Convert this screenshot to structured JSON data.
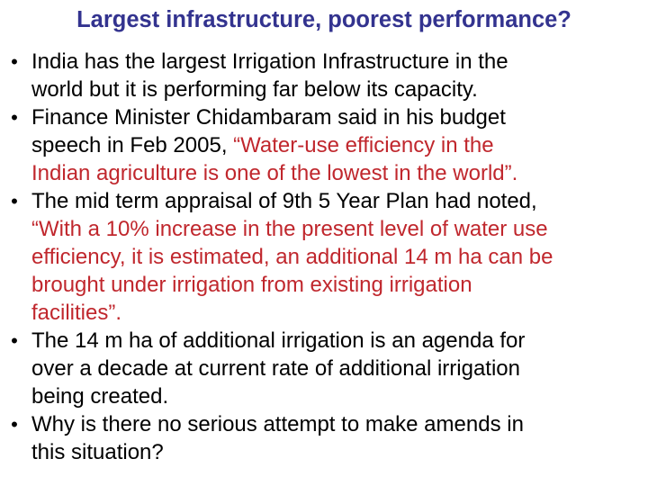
{
  "slide": {
    "title": "Largest infrastructure, poorest performance?",
    "bullet_symbol": "•",
    "bullets": [
      {
        "lines": [
          "India has the largest Irrigation Infrastructure in the",
          "world but it is performing far below its capacity."
        ]
      },
      {
        "lines_start": "Finance Minister Chidambaram said in his budget",
        "line2_prefix": "speech in Feb 2005, ",
        "line2_quote": "“Water-use efficiency in the",
        "line3_quote": "Indian agriculture is one of the lowest in the world”."
      },
      {
        "line1": "The mid term appraisal of 9th 5 Year Plan had noted,",
        "quote_lines": [
          "“With a 10% increase in the present level of water use",
          "efficiency, it is estimated, an additional 14 m ha can be",
          "brought under irrigation from existing irrigation",
          "facilities”."
        ]
      },
      {
        "lines": [
          "The 14 m ha of additional irrigation is an agenda for",
          "over a decade at current rate of additional irrigation",
          "being created."
        ]
      },
      {
        "lines": [
          "Why is there no serious attempt to make amends in",
          "this situation?"
        ]
      }
    ],
    "colors": {
      "title": "#33338f",
      "body_text": "#000000",
      "quote_text": "#c0272d"
    }
  }
}
